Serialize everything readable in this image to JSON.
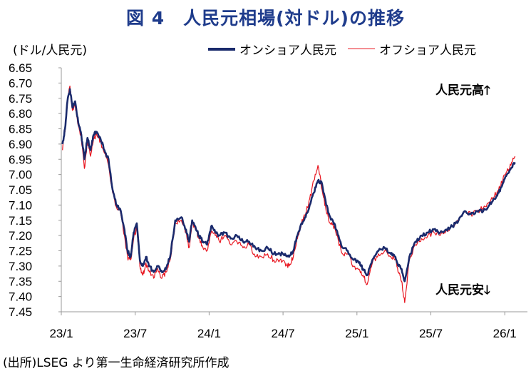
{
  "chart_data": {
    "type": "line",
    "title": "図 4　人民元相場(対ドル)の推移",
    "ylabel": "(ドル/人民元)",
    "y_inverted": true,
    "ylim": [
      6.65,
      7.45
    ],
    "y_ticks": [
      "6.65",
      "6.70",
      "6.75",
      "6.80",
      "6.85",
      "6.90",
      "6.95",
      "7.00",
      "7.05",
      "7.10",
      "7.15",
      "7.20",
      "7.25",
      "7.30",
      "7.35",
      "7.40",
      "7.45"
    ],
    "x_ticks": [
      "23/1",
      "23/7",
      "24/1",
      "24/7",
      "25/1",
      "25/7",
      "26/1"
    ],
    "grid": false,
    "legend_position": "top-right",
    "annotations": {
      "high": "人民元高",
      "low": "人民元安"
    },
    "source": "(出所)LSEG より第一生命経済研究所作成",
    "series": [
      {
        "name": "オンショア人民元",
        "color": "#1a2a6c",
        "x": [
          "23/1",
          "23/1",
          "23/1",
          "23/1",
          "23/1",
          "23/2",
          "23/2",
          "23/2",
          "23/2",
          "23/3",
          "23/3",
          "23/3",
          "23/3",
          "23/4",
          "23/4",
          "23/4",
          "23/5",
          "23/5",
          "23/5",
          "23/6",
          "23/6",
          "23/6",
          "23/6",
          "23/7",
          "23/7",
          "23/7",
          "23/7",
          "23/8",
          "23/8",
          "23/8",
          "23/9",
          "23/9",
          "23/9",
          "23/10",
          "23/10",
          "23/11",
          "23/11",
          "23/11",
          "23/11",
          "23/12",
          "23/12",
          "23/12",
          "24/1",
          "24/1",
          "24/1",
          "24/2",
          "24/2",
          "24/3",
          "24/3",
          "24/4",
          "24/4",
          "24/5",
          "24/5",
          "24/6",
          "24/6",
          "24/7",
          "24/7",
          "24/7",
          "24/8",
          "24/8",
          "24/8",
          "24/9",
          "24/9",
          "24/9",
          "24/10",
          "24/10",
          "24/10",
          "24/11",
          "24/11",
          "24/11",
          "24/12",
          "24/12",
          "25/1",
          "25/1",
          "25/1",
          "25/2",
          "25/2",
          "25/3",
          "25/3",
          "25/4",
          "25/4",
          "25/4",
          "25/4",
          "25/5",
          "25/5",
          "25/6",
          "25/6",
          "25/7",
          "25/7",
          "25/8",
          "25/8",
          "25/9",
          "25/9",
          "25/10",
          "25/10",
          "25/11",
          "25/11",
          "25/12",
          "25/12",
          "25/12",
          "26/1",
          "26/1",
          "26/1"
        ],
        "values": [
          6.9,
          6.85,
          6.76,
          6.72,
          6.78,
          6.76,
          6.83,
          6.87,
          6.95,
          6.88,
          6.92,
          6.87,
          6.86,
          6.88,
          6.92,
          6.95,
          7.05,
          7.1,
          7.12,
          7.18,
          7.25,
          7.27,
          7.19,
          7.16,
          7.28,
          7.3,
          7.27,
          7.3,
          7.32,
          7.3,
          7.32,
          7.31,
          7.27,
          7.15,
          7.14,
          7.18,
          7.22,
          7.15,
          7.17,
          7.2,
          7.22,
          7.23,
          7.17,
          7.19,
          7.2,
          7.19,
          7.21,
          7.2,
          7.22,
          7.22,
          7.24,
          7.25,
          7.24,
          7.26,
          7.26,
          7.26,
          7.27,
          7.25,
          7.2,
          7.16,
          7.14,
          7.1,
          7.06,
          7.02,
          7.03,
          7.1,
          7.14,
          7.16,
          7.2,
          7.24,
          7.25,
          7.28,
          7.29,
          7.31,
          7.33,
          7.28,
          7.25,
          7.24,
          7.26,
          7.27,
          7.3,
          7.31,
          7.35,
          7.27,
          7.22,
          7.2,
          7.19,
          7.18,
          7.19,
          7.18,
          7.17,
          7.15,
          7.12,
          7.13,
          7.12,
          7.12,
          7.1,
          7.08,
          7.06,
          7.03,
          7.0,
          6.98,
          6.96
        ]
      },
      {
        "name": "オフショア人民元",
        "color": "#e8141e",
        "x": [
          "23/1",
          "23/1",
          "23/1",
          "23/1",
          "23/1",
          "23/2",
          "23/2",
          "23/2",
          "23/2",
          "23/3",
          "23/3",
          "23/3",
          "23/3",
          "23/4",
          "23/4",
          "23/4",
          "23/5",
          "23/5",
          "23/5",
          "23/6",
          "23/6",
          "23/6",
          "23/6",
          "23/7",
          "23/7",
          "23/7",
          "23/7",
          "23/8",
          "23/8",
          "23/8",
          "23/9",
          "23/9",
          "23/9",
          "23/10",
          "23/10",
          "23/11",
          "23/11",
          "23/11",
          "23/11",
          "23/12",
          "23/12",
          "23/12",
          "24/1",
          "24/1",
          "24/1",
          "24/2",
          "24/2",
          "24/3",
          "24/3",
          "24/4",
          "24/4",
          "24/5",
          "24/5",
          "24/6",
          "24/6",
          "24/7",
          "24/7",
          "24/7",
          "24/8",
          "24/8",
          "24/8",
          "24/9",
          "24/9",
          "24/9",
          "24/10",
          "24/10",
          "24/10",
          "24/11",
          "24/11",
          "24/11",
          "24/12",
          "24/12",
          "25/1",
          "25/1",
          "25/1",
          "25/2",
          "25/2",
          "25/3",
          "25/3",
          "25/4",
          "25/4",
          "25/4",
          "25/4",
          "25/5",
          "25/5",
          "25/6",
          "25/6",
          "25/7",
          "25/7",
          "25/8",
          "25/8",
          "25/9",
          "25/9",
          "25/10",
          "25/10",
          "25/11",
          "25/11",
          "25/12",
          "25/12",
          "25/12",
          "26/1",
          "26/1",
          "26/1"
        ],
        "values": [
          6.92,
          6.86,
          6.76,
          6.71,
          6.79,
          6.77,
          6.84,
          6.88,
          6.98,
          6.89,
          6.94,
          6.88,
          6.87,
          6.89,
          6.93,
          6.97,
          7.06,
          7.11,
          7.13,
          7.2,
          7.27,
          7.28,
          7.21,
          7.17,
          7.3,
          7.33,
          7.29,
          7.32,
          7.34,
          7.31,
          7.34,
          7.32,
          7.28,
          7.16,
          7.15,
          7.19,
          7.24,
          7.16,
          7.18,
          7.21,
          7.24,
          7.25,
          7.19,
          7.2,
          7.22,
          7.2,
          7.23,
          7.22,
          7.24,
          7.23,
          7.27,
          7.27,
          7.26,
          7.28,
          7.28,
          7.29,
          7.3,
          7.27,
          7.21,
          7.16,
          7.13,
          7.08,
          7.02,
          6.97,
          7.05,
          7.12,
          7.16,
          7.17,
          7.22,
          7.26,
          7.26,
          7.3,
          7.31,
          7.33,
          7.36,
          7.29,
          7.26,
          7.25,
          7.27,
          7.28,
          7.32,
          7.35,
          7.42,
          7.28,
          7.23,
          7.21,
          7.2,
          7.19,
          7.2,
          7.18,
          7.17,
          7.15,
          7.12,
          7.13,
          7.12,
          7.11,
          7.09,
          7.07,
          7.05,
          7.02,
          6.99,
          6.97,
          6.94
        ]
      }
    ]
  }
}
